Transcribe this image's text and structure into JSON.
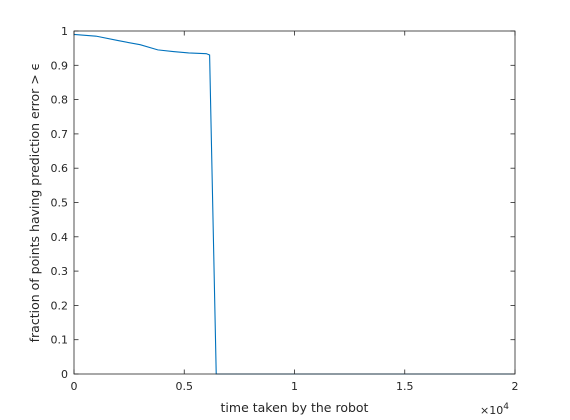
{
  "chart_data": {
    "type": "line",
    "xlabel": "time taken by the robot",
    "ylabel": "fraction of points having prediction error > ϵ",
    "xlim": [
      0,
      20000
    ],
    "ylim": [
      0,
      1
    ],
    "x_multiplier_base": "×10",
    "x_multiplier_exp": "4",
    "xticks": [
      0,
      5000,
      10000,
      15000,
      20000
    ],
    "xtick_labels": [
      "0",
      "0.5",
      "1",
      "1.5",
      "2"
    ],
    "yticks": [
      0,
      0.1,
      0.2,
      0.3,
      0.4,
      0.5,
      0.6,
      0.7,
      0.8,
      0.9,
      1
    ],
    "ytick_labels": [
      "0",
      "0.1",
      "0.2",
      "0.3",
      "0.4",
      "0.5",
      "0.6",
      "0.7",
      "0.8",
      "0.9",
      "1"
    ],
    "grid": false,
    "line_color": "#0072BD",
    "series": [
      {
        "x": [
          0,
          1000,
          2000,
          3000,
          3800,
          4500,
          5200,
          6000,
          6150,
          6450,
          8000,
          10000,
          12000,
          14000,
          16000,
          18000,
          20000
        ],
        "y": [
          0.99,
          0.985,
          0.972,
          0.96,
          0.945,
          0.94,
          0.936,
          0.934,
          0.93,
          0.0,
          0.0,
          0.0,
          0.0,
          0.0,
          0.0,
          0.0,
          0.0
        ]
      }
    ]
  }
}
